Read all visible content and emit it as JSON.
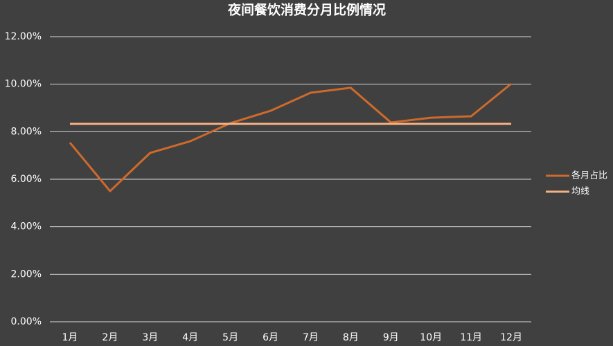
{
  "chart_data": {
    "type": "line",
    "title": "夜间餐饮消费分月比例情况",
    "categories": [
      "1月",
      "2月",
      "3月",
      "4月",
      "5月",
      "6月",
      "7月",
      "8月",
      "9月",
      "10月",
      "11月",
      "12月"
    ],
    "series": [
      {
        "name": "各月占比",
        "color": "#cd6a2c",
        "values": [
          7.54,
          5.5,
          7.11,
          7.6,
          8.36,
          8.88,
          9.64,
          9.85,
          8.39,
          8.59,
          8.65,
          10.02
        ]
      },
      {
        "name": "均线",
        "color": "#f4b183",
        "values": [
          8.33,
          8.33,
          8.33,
          8.33,
          8.33,
          8.33,
          8.33,
          8.33,
          8.33,
          8.33,
          8.33,
          8.33
        ]
      }
    ],
    "ylim": [
      0,
      12
    ],
    "yticks": [
      {
        "value": 0,
        "label": "0.00%"
      },
      {
        "value": 2,
        "label": "2.00%"
      },
      {
        "value": 4,
        "label": "4.00%"
      },
      {
        "value": 6,
        "label": "6.00%"
      },
      {
        "value": 8,
        "label": "8.00%"
      },
      {
        "value": 10,
        "label": "10.00%"
      },
      {
        "value": 12,
        "label": "12.00%"
      }
    ],
    "grid": true,
    "legend": "right"
  }
}
